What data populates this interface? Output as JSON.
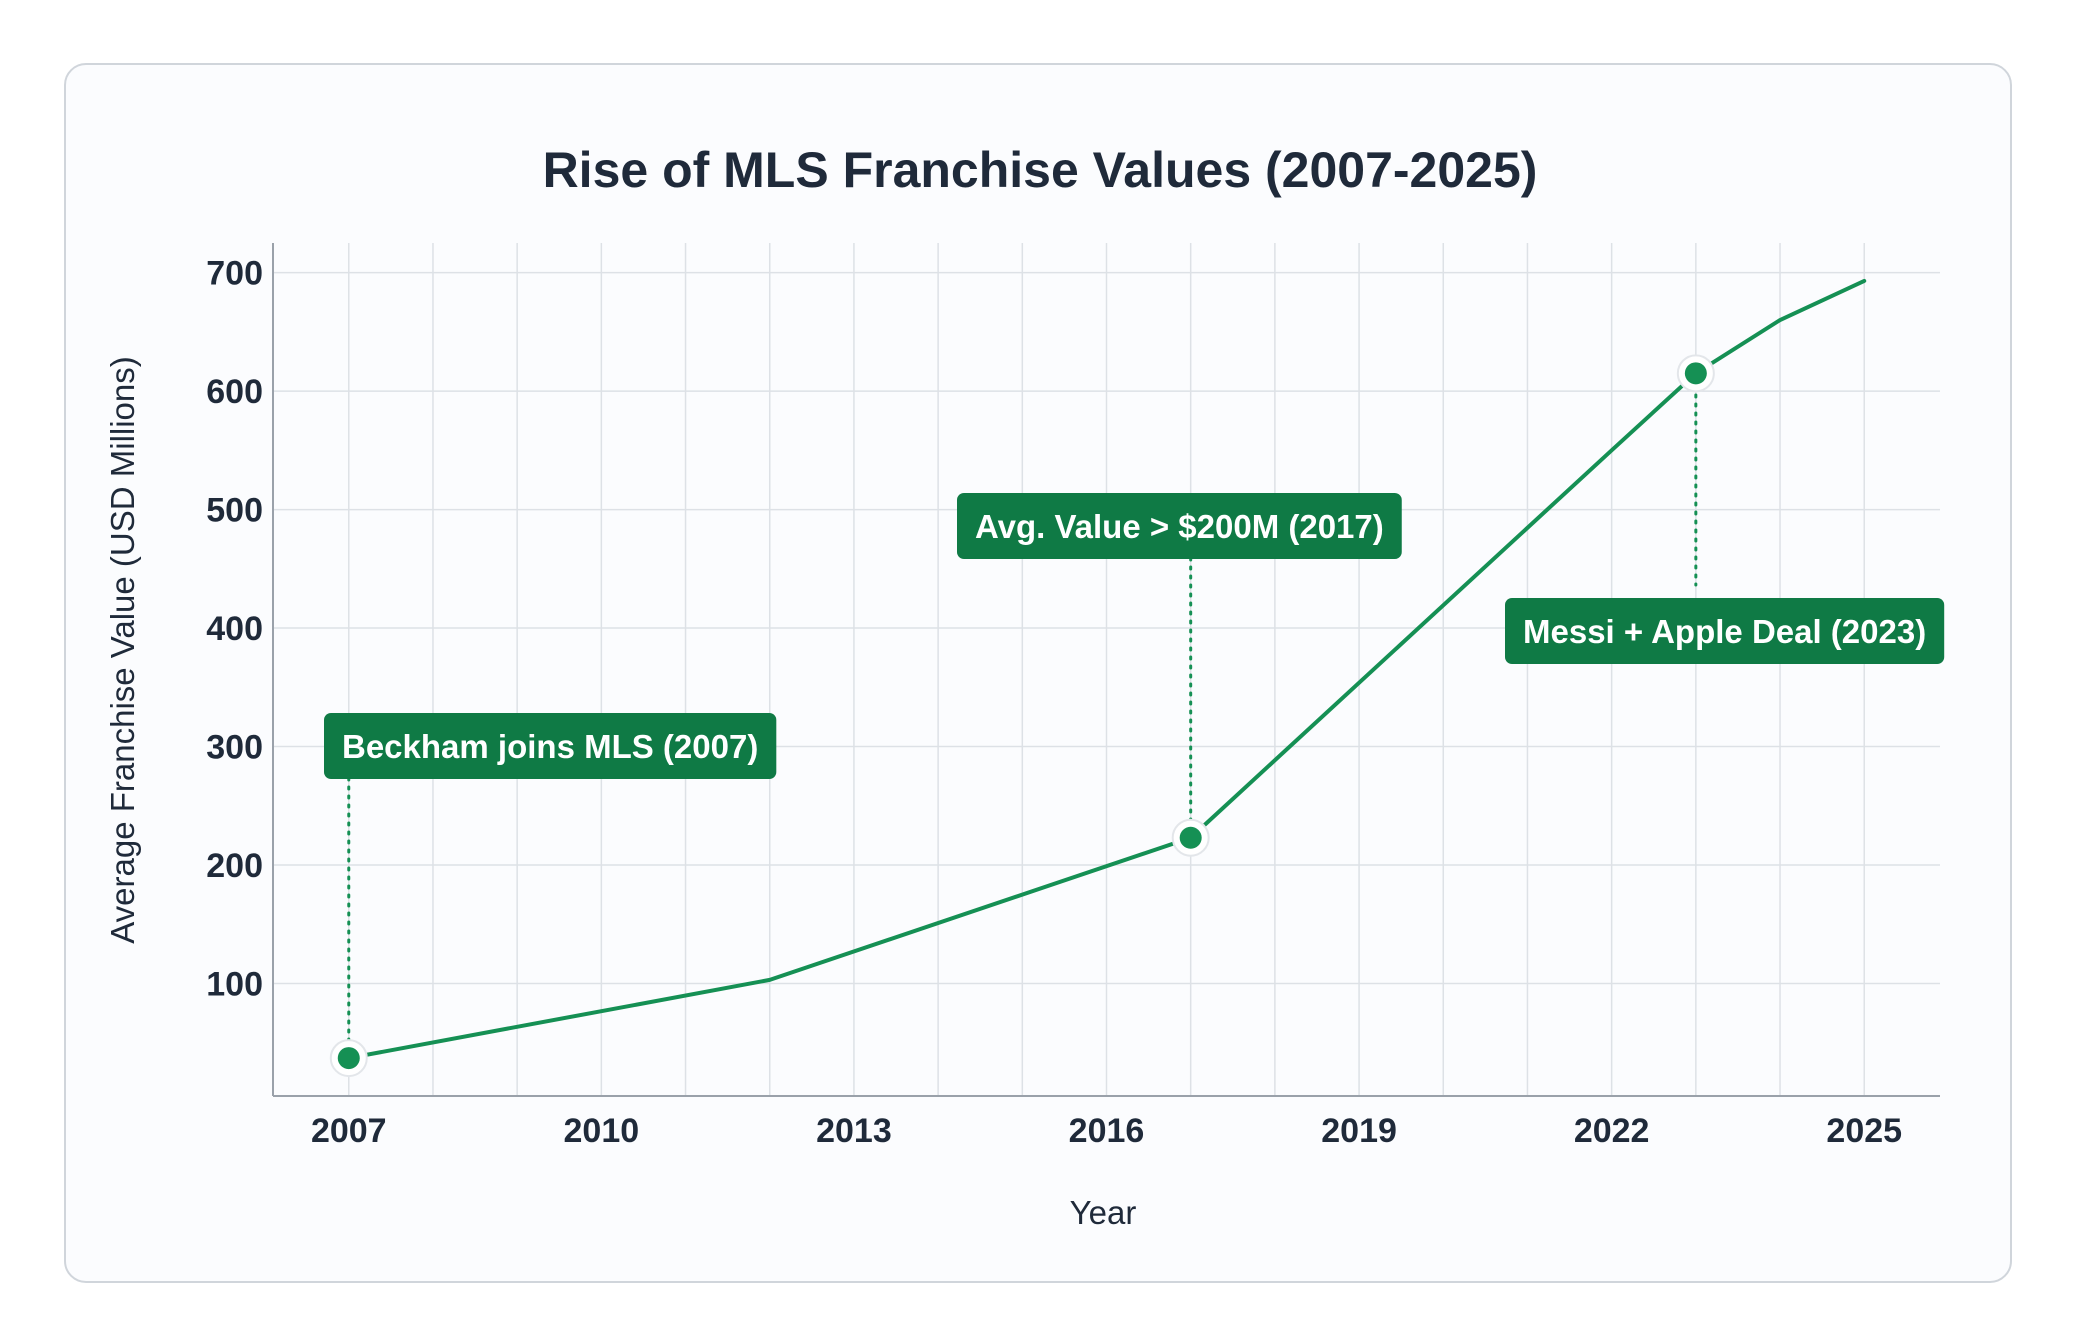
{
  "chart_data": {
    "type": "line",
    "title": "Rise of MLS Franchise Values (2007-2025)",
    "xlabel": "Year",
    "ylabel": "Average Franchise Value (USD Millions)",
    "xlim": [
      2006.1,
      2025.9
    ],
    "ylim": [
      5,
      725
    ],
    "x_ticks": [
      "2007",
      "2010",
      "2013",
      "2016",
      "2019",
      "2022",
      "2025"
    ],
    "y_ticks": [
      "100",
      "200",
      "300",
      "400",
      "500",
      "600",
      "700"
    ],
    "grid": true,
    "series": [
      {
        "x": [
          2007,
          2012,
          2017,
          2022,
          2023,
          2024,
          2025
        ],
        "y": [
          37,
          103,
          223,
          550,
          615,
          660,
          693
        ],
        "color": "#159054"
      }
    ],
    "highlight_points": [
      2007,
      2017,
      2023
    ],
    "annotations": [
      {
        "year": 2007,
        "value": 37,
        "text": "Beckham joins MLS (2007)"
      },
      {
        "year": 2017,
        "value": 223,
        "text": "Avg. Value > $200M (2017)"
      },
      {
        "year": 2023,
        "value": 615,
        "text": "Messi + Apple Deal (2023)"
      }
    ],
    "colors": {
      "line": "#159054",
      "label_bg": "#0f7a45",
      "label_text": "#ffffff"
    }
  }
}
